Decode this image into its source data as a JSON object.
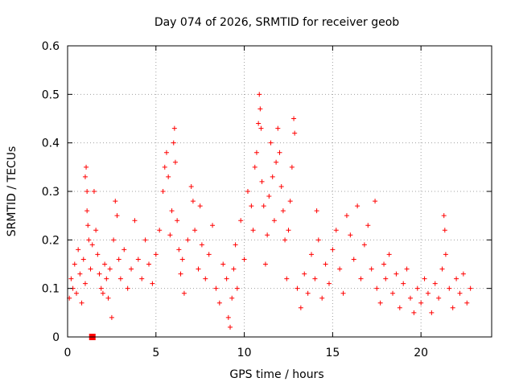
{
  "chart_data": {
    "type": "scatter",
    "title": "Day 074 of 2026, SRMTID for receiver geob",
    "xlabel": "GPS time / hours",
    "ylabel": "SRMTID / TECUs",
    "xlim": [
      0,
      24
    ],
    "ylim": [
      0,
      0.6
    ],
    "x_ticks": [
      0,
      5,
      10,
      15,
      20
    ],
    "x_tick_labels": [
      "0",
      "5",
      "10",
      "15",
      "20"
    ],
    "y_ticks": [
      0,
      0.1,
      0.2,
      0.3,
      0.4,
      0.5,
      0.6
    ],
    "y_tick_labels": [
      "0",
      "0.1",
      "0.2",
      "0.3",
      "0.4",
      "0.5",
      "0.6"
    ],
    "grid": true,
    "marker": "plus",
    "series": [
      {
        "name": "SRMTID",
        "color": "#ff0000",
        "points": [
          [
            0.1,
            0.08
          ],
          [
            0.2,
            0.12
          ],
          [
            0.3,
            0.1
          ],
          [
            0.4,
            0.15
          ],
          [
            0.5,
            0.09
          ],
          [
            0.6,
            0.18
          ],
          [
            0.7,
            0.13
          ],
          [
            0.8,
            0.07
          ],
          [
            0.9,
            0.16
          ],
          [
            1.0,
            0.11
          ],
          [
            1.0,
            0.33
          ],
          [
            1.05,
            0.35
          ],
          [
            1.1,
            0.3
          ],
          [
            1.1,
            0.26
          ],
          [
            1.15,
            0.23
          ],
          [
            1.2,
            0.2
          ],
          [
            1.3,
            0.14
          ],
          [
            1.4,
            0.19
          ],
          [
            1.5,
            0.3
          ],
          [
            1.6,
            0.22
          ],
          [
            1.7,
            0.17
          ],
          [
            1.8,
            0.13
          ],
          [
            1.9,
            0.1
          ],
          [
            2.0,
            0.09
          ],
          [
            2.1,
            0.15
          ],
          [
            2.2,
            0.12
          ],
          [
            2.3,
            0.08
          ],
          [
            2.4,
            0.14
          ],
          [
            2.5,
            0.04
          ],
          [
            2.6,
            0.2
          ],
          [
            2.7,
            0.28
          ],
          [
            2.8,
            0.25
          ],
          [
            2.9,
            0.16
          ],
          [
            3.0,
            0.12
          ],
          [
            3.2,
            0.18
          ],
          [
            3.4,
            0.1
          ],
          [
            3.6,
            0.14
          ],
          [
            3.8,
            0.24
          ],
          [
            4.0,
            0.16
          ],
          [
            4.2,
            0.12
          ],
          [
            4.4,
            0.2
          ],
          [
            4.6,
            0.15
          ],
          [
            4.8,
            0.11
          ],
          [
            5.0,
            0.17
          ],
          [
            5.2,
            0.22
          ],
          [
            5.4,
            0.3
          ],
          [
            5.5,
            0.35
          ],
          [
            5.6,
            0.38
          ],
          [
            5.7,
            0.33
          ],
          [
            5.8,
            0.21
          ],
          [
            5.9,
            0.26
          ],
          [
            6.0,
            0.4
          ],
          [
            6.05,
            0.43
          ],
          [
            6.1,
            0.36
          ],
          [
            6.2,
            0.24
          ],
          [
            6.3,
            0.18
          ],
          [
            6.4,
            0.13
          ],
          [
            6.5,
            0.16
          ],
          [
            6.6,
            0.09
          ],
          [
            6.8,
            0.2
          ],
          [
            7.0,
            0.31
          ],
          [
            7.1,
            0.28
          ],
          [
            7.2,
            0.22
          ],
          [
            7.4,
            0.14
          ],
          [
            7.5,
            0.27
          ],
          [
            7.6,
            0.19
          ],
          [
            7.8,
            0.12
          ],
          [
            8.0,
            0.17
          ],
          [
            8.2,
            0.23
          ],
          [
            8.4,
            0.1
          ],
          [
            8.6,
            0.07
          ],
          [
            8.8,
            0.15
          ],
          [
            9.0,
            0.12
          ],
          [
            9.1,
            0.04
          ],
          [
            9.2,
            0.02
          ],
          [
            9.3,
            0.08
          ],
          [
            9.4,
            0.14
          ],
          [
            9.5,
            0.19
          ],
          [
            9.6,
            0.1
          ],
          [
            9.8,
            0.24
          ],
          [
            10.0,
            0.16
          ],
          [
            10.2,
            0.3
          ],
          [
            10.4,
            0.27
          ],
          [
            10.5,
            0.22
          ],
          [
            10.6,
            0.35
          ],
          [
            10.7,
            0.38
          ],
          [
            10.8,
            0.44
          ],
          [
            10.85,
            0.5
          ],
          [
            10.9,
            0.47
          ],
          [
            10.95,
            0.43
          ],
          [
            11.0,
            0.32
          ],
          [
            11.1,
            0.27
          ],
          [
            11.2,
            0.15
          ],
          [
            11.3,
            0.21
          ],
          [
            11.4,
            0.29
          ],
          [
            11.5,
            0.4
          ],
          [
            11.6,
            0.33
          ],
          [
            11.7,
            0.24
          ],
          [
            11.8,
            0.36
          ],
          [
            11.9,
            0.43
          ],
          [
            12.0,
            0.38
          ],
          [
            12.1,
            0.31
          ],
          [
            12.2,
            0.26
          ],
          [
            12.3,
            0.2
          ],
          [
            12.4,
            0.12
          ],
          [
            12.5,
            0.22
          ],
          [
            12.6,
            0.28
          ],
          [
            12.7,
            0.35
          ],
          [
            12.8,
            0.45
          ],
          [
            12.85,
            0.42
          ],
          [
            13.0,
            0.1
          ],
          [
            13.2,
            0.06
          ],
          [
            13.4,
            0.13
          ],
          [
            13.6,
            0.09
          ],
          [
            13.8,
            0.17
          ],
          [
            14.0,
            0.12
          ],
          [
            14.1,
            0.26
          ],
          [
            14.2,
            0.2
          ],
          [
            14.4,
            0.08
          ],
          [
            14.6,
            0.15
          ],
          [
            14.8,
            0.11
          ],
          [
            15.0,
            0.18
          ],
          [
            15.2,
            0.22
          ],
          [
            15.4,
            0.14
          ],
          [
            15.6,
            0.09
          ],
          [
            15.8,
            0.25
          ],
          [
            16.0,
            0.21
          ],
          [
            16.2,
            0.16
          ],
          [
            16.4,
            0.27
          ],
          [
            16.6,
            0.12
          ],
          [
            16.8,
            0.19
          ],
          [
            17.0,
            0.23
          ],
          [
            17.2,
            0.14
          ],
          [
            17.4,
            0.28
          ],
          [
            17.5,
            0.1
          ],
          [
            17.7,
            0.07
          ],
          [
            17.9,
            0.15
          ],
          [
            18.0,
            0.12
          ],
          [
            18.2,
            0.17
          ],
          [
            18.4,
            0.09
          ],
          [
            18.6,
            0.13
          ],
          [
            18.8,
            0.06
          ],
          [
            19.0,
            0.11
          ],
          [
            19.2,
            0.14
          ],
          [
            19.4,
            0.08
          ],
          [
            19.6,
            0.05
          ],
          [
            19.8,
            0.1
          ],
          [
            20.0,
            0.07
          ],
          [
            20.2,
            0.12
          ],
          [
            20.4,
            0.09
          ],
          [
            20.6,
            0.05
          ],
          [
            20.8,
            0.11
          ],
          [
            21.0,
            0.08
          ],
          [
            21.2,
            0.14
          ],
          [
            21.3,
            0.25
          ],
          [
            21.35,
            0.22
          ],
          [
            21.4,
            0.17
          ],
          [
            21.6,
            0.1
          ],
          [
            21.8,
            0.06
          ],
          [
            22.0,
            0.12
          ],
          [
            22.2,
            0.09
          ],
          [
            22.4,
            0.13
          ],
          [
            22.6,
            0.07
          ],
          [
            22.8,
            0.1
          ]
        ]
      }
    ],
    "annotation_marker": {
      "x": 1.4,
      "y": 0.0,
      "shape": "filled-square"
    }
  }
}
